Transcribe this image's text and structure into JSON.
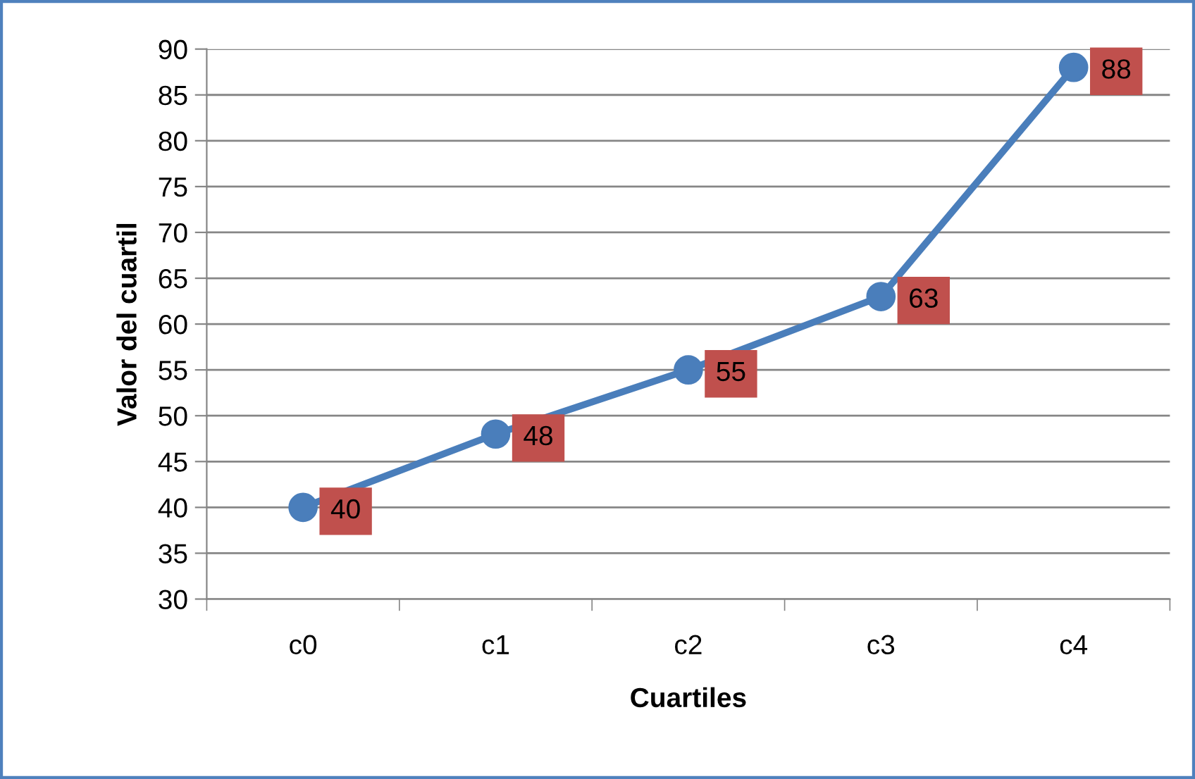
{
  "chart_data": {
    "type": "line",
    "xlabel": "Cuartiles",
    "ylabel": "Valor del cuartil",
    "categories": [
      "c0",
      "c1",
      "c2",
      "c3",
      "c4"
    ],
    "series": [
      {
        "color": "#4a7ebb",
        "values": [
          40,
          48,
          55,
          63,
          88
        ]
      }
    ],
    "ylim": [
      30,
      90
    ],
    "yticks": [
      30,
      35,
      40,
      45,
      50,
      55,
      60,
      65,
      70,
      75,
      80,
      85,
      90
    ],
    "grid": "y",
    "marker": "circle",
    "line_style": "solid",
    "data_labels": true,
    "legend": false
  }
}
